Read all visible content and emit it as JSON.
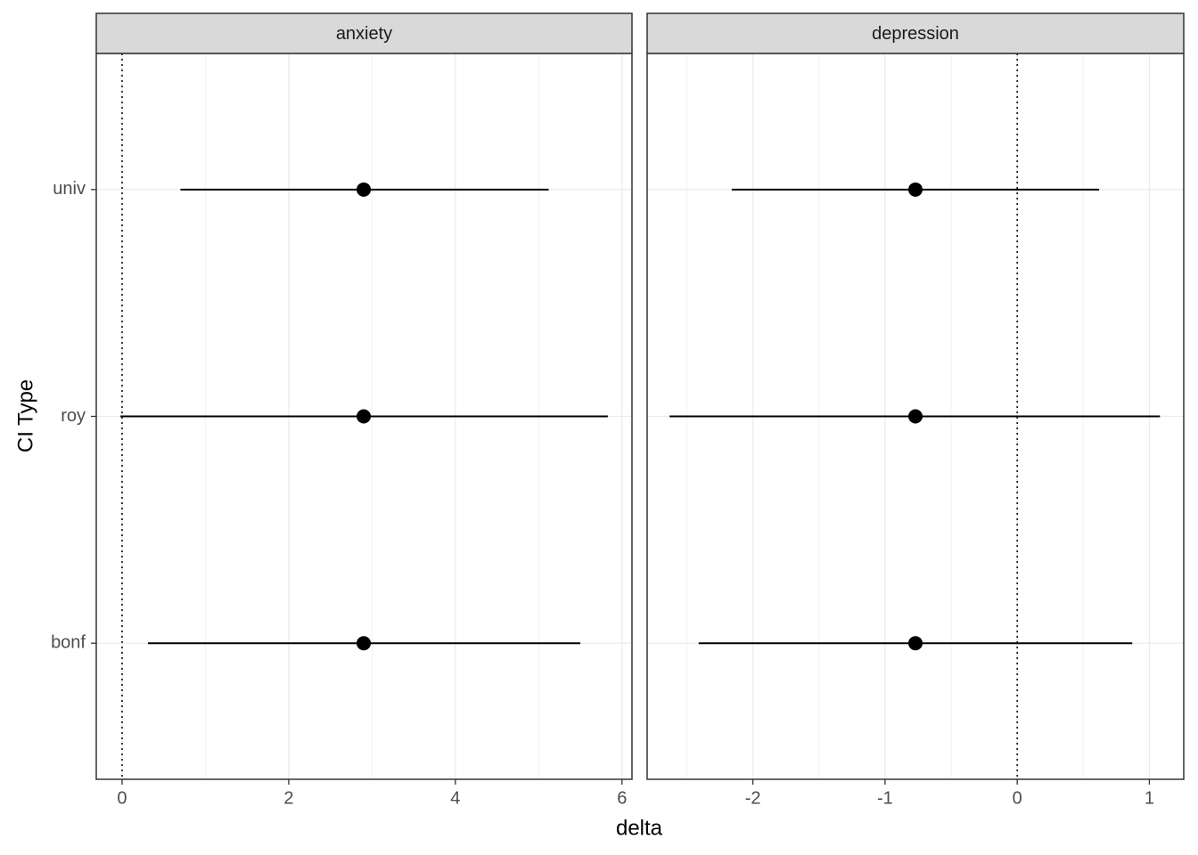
{
  "x_label": "delta",
  "y_label": "CI Type",
  "chart_data": [
    {
      "type": "pointrange",
      "title": "anxiety",
      "categories": [
        "bonf",
        "roy",
        "univ"
      ],
      "values": [
        2.9,
        2.9,
        2.9
      ],
      "lower": [
        0.31,
        -0.02,
        0.7
      ],
      "upper": [
        5.5,
        5.83,
        5.12
      ],
      "color": "#000000",
      "xlim": [
        -0.31,
        6.12
      ],
      "xticks": [
        0,
        2,
        4,
        6
      ],
      "minor_xticks": [
        1,
        3,
        5
      ],
      "reference_line": 0,
      "grid": true
    },
    {
      "type": "pointrange",
      "title": "depression",
      "categories": [
        "bonf",
        "roy",
        "univ"
      ],
      "values": [
        -0.77,
        -0.77,
        -0.77
      ],
      "lower": [
        -2.41,
        -2.63,
        -2.16
      ],
      "upper": [
        0.87,
        1.08,
        0.62
      ],
      "color": "#000000",
      "xlim": [
        -2.8,
        1.26
      ],
      "xticks": [
        -2,
        -1,
        0,
        1
      ],
      "minor_xticks": [
        -2.5,
        -1.5,
        -0.5,
        0.5
      ],
      "reference_line": 0,
      "grid": true
    }
  ]
}
